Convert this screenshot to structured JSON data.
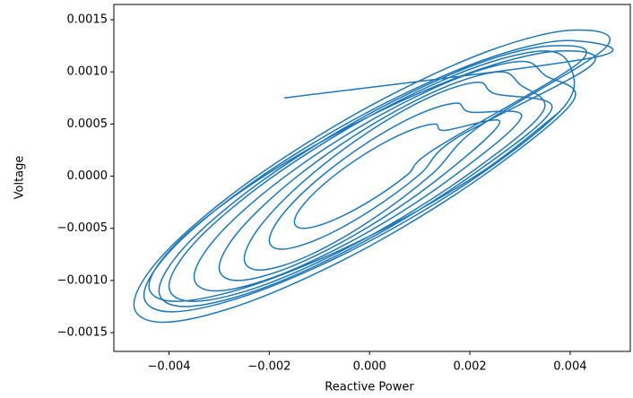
{
  "chart_data": {
    "type": "line",
    "xlabel": "Reactive Power",
    "ylabel": "Voltage",
    "color": "#1f77b4",
    "xlim": [
      -0.0051,
      0.0052
    ],
    "ylim": [
      -0.00168,
      0.001646
    ],
    "xticks": [
      {
        "value": -0.004,
        "label": "−0.004"
      },
      {
        "value": -0.002,
        "label": "−0.002"
      },
      {
        "value": 0,
        "label": "0.000"
      },
      {
        "value": 0.002,
        "label": "0.002"
      },
      {
        "value": 0.004,
        "label": "0.004"
      }
    ],
    "yticks": [
      {
        "value": -0.0015,
        "label": "−0.0015"
      },
      {
        "value": -0.001,
        "label": "−0.0010"
      },
      {
        "value": -0.0005,
        "label": "−0.0005"
      },
      {
        "value": 0,
        "label": "0.0000"
      },
      {
        "value": 0.0005,
        "label": "0.0005"
      },
      {
        "value": 0.001,
        "label": "0.0010"
      },
      {
        "value": 0.0015,
        "label": "0.0015"
      }
    ],
    "x": [
      -0.0017,
      0.0045,
      0.003897,
      0.00225,
      0,
      -0.00225,
      -0.003897,
      -0.0045,
      -0.003897,
      -0.00225,
      0,
      0.00225,
      0.003897,
      0.004,
      0.003464,
      0.002,
      0,
      -0.002,
      -0.003464,
      -0.004,
      -0.003464,
      -0.002,
      0,
      0.002,
      0.003464,
      0.003,
      0.002598,
      0.0015,
      0,
      -0.0015,
      -0.002598,
      -0.003,
      -0.002598,
      -0.0015,
      0,
      0.0015,
      0.002598,
      0.0015,
      0.001299,
      0.00075,
      0,
      -0.00075,
      -0.001299,
      -0.0015,
      -0.001299,
      -0.00075,
      0,
      0.00075,
      0.001299,
      0.0042,
      0.003637,
      0.0021,
      0,
      -0.0021,
      -0.003637,
      -0.0042,
      -0.003637,
      -0.0021,
      0,
      0.0021,
      0.003637,
      0.0025,
      0.002165,
      0.00125,
      0,
      -0.00125,
      -0.002165,
      -0.0025,
      -0.002165,
      -0.00125,
      0,
      0.00125,
      0.002165,
      0.0047,
      0.00407,
      0.00235,
      0,
      -0.00235,
      -0.00407,
      -0.0047,
      -0.00407,
      -0.00235,
      0,
      0.00235,
      0.00407,
      0.0035,
      0.003031,
      0.00175,
      0,
      -0.00175,
      -0.003031,
      -0.0035,
      -0.003031,
      -0.00175,
      0,
      0.00175,
      0.003031,
      0.002,
      0.001732,
      0.001,
      0,
      -0.001,
      -0.001732,
      -0.002,
      -0.001732,
      -0.001,
      0,
      0.001,
      0.001732,
      0.0044,
      0.00381,
      0.0022,
      0,
      -0.0022,
      -0.00381,
      -0.0044,
      -0.00381,
      -0.0022,
      0,
      0.0022,
      0.00381
    ],
    "values": [
      0.00075,
      0.001141,
      0.0013,
      0.00111,
      0.000623,
      -3.12e-05,
      -0.000677,
      -0.001141,
      -0.0013,
      -0.00111,
      -0.000623,
      3.12e-05,
      0.000677,
      0.001054,
      0.0012,
      0.001025,
      0.000575,
      -2.88e-05,
      -0.000625,
      -0.001054,
      -0.0012,
      -0.001025,
      -0.000575,
      2.88e-05,
      0.000625,
      0.000878,
      0.001,
      0.000854,
      0.000479,
      -2.4e-05,
      -0.000521,
      -0.000878,
      -0.001,
      -0.000854,
      -0.000479,
      2.4e-05,
      0.000521,
      0.000439,
      0.0005,
      0.000427,
      0.00024,
      -1.2e-05,
      -0.000261,
      -0.000439,
      -0.0005,
      -0.000427,
      -0.00024,
      1.2e-05,
      0.000261,
      0.001098,
      0.00125,
      0.001068,
      0.000599,
      -3e-05,
      -0.000651,
      -0.001098,
      -0.00125,
      -0.001068,
      -0.000599,
      3e-05,
      0.000651,
      0.00079,
      0.0009,
      0.000769,
      0.000431,
      -2.2e-05,
      -0.000469,
      -0.00079,
      -0.0009,
      -0.000769,
      -0.000431,
      2.2e-05,
      0.000469,
      0.001229,
      0.0014,
      0.001196,
      0.000671,
      -3.4e-05,
      -0.000729,
      -0.001229,
      -0.0014,
      -0.001196,
      -0.000671,
      3.4e-05,
      0.000729,
      0.000966,
      0.0011,
      0.000939,
      0.000527,
      -2.6e-05,
      -0.000573,
      -0.000966,
      -0.0011,
      -0.000939,
      -0.000527,
      2.6e-05,
      0.000573,
      0.000615,
      0.0007,
      0.000598,
      0.000335,
      -1.7e-05,
      -0.000365,
      -0.000615,
      -0.0007,
      -0.000598,
      -0.000335,
      1.7e-05,
      0.000365,
      0.001054,
      0.0012,
      0.001025,
      0.000575,
      -2.9e-05,
      -0.000625,
      -0.001054,
      -0.0012,
      -0.001025,
      -0.000575,
      2.9e-05,
      0.000625
    ]
  }
}
